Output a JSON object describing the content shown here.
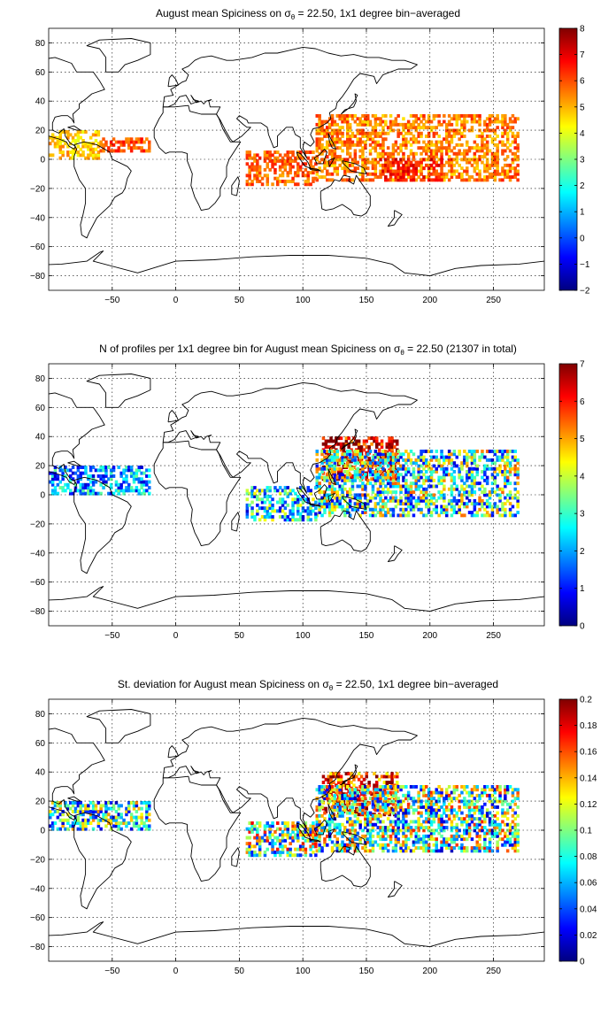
{
  "chart_data": [
    {
      "type": "heatmap",
      "title": "August mean Spiciness on σ",
      "title_sub": "θ",
      "title_tail": " = 22.50, 1x1 degree bin−averaged",
      "x_ticks": [
        "−50",
        "0",
        "50",
        "100",
        "150",
        "200",
        "250"
      ],
      "x_tick_values": [
        -50,
        0,
        50,
        100,
        150,
        200,
        250
      ],
      "xlim": [
        -100,
        290
      ],
      "y_ticks": [
        "80",
        "60",
        "40",
        "20",
        "0",
        "−20",
        "−40",
        "−60",
        "−80"
      ],
      "y_tick_values": [
        80,
        60,
        40,
        20,
        0,
        -20,
        -40,
        -60,
        -80
      ],
      "ylim": [
        -90,
        90
      ],
      "colorbar_ticks": [
        "8",
        "7",
        "6",
        "5",
        "4",
        "3",
        "2",
        "1",
        "0",
        "−1",
        "−2"
      ],
      "colorbar_tick_values": [
        8,
        7,
        6,
        5,
        4,
        3,
        2,
        1,
        0,
        -1,
        -2
      ],
      "clim": [
        -2,
        8
      ],
      "colormap": "jet",
      "grid": true,
      "regions": [
        {
          "lon": [
            110,
            270
          ],
          "lat": [
            -15,
            30
          ],
          "value": 5.5,
          "spread": 1.0
        },
        {
          "lon": [
            160,
            210
          ],
          "lat": [
            -15,
            0
          ],
          "value": 6.5,
          "spread": 0.8
        },
        {
          "lon": [
            55,
            110
          ],
          "lat": [
            -18,
            5
          ],
          "value": 5.8,
          "spread": 0.8
        },
        {
          "lon": [
            -100,
            -60
          ],
          "lat": [
            0,
            20
          ],
          "value": 4.8,
          "spread": 0.8
        },
        {
          "lon": [
            -60,
            -20
          ],
          "lat": [
            5,
            15
          ],
          "value": 6.0,
          "spread": 0.8
        }
      ]
    },
    {
      "type": "heatmap",
      "title": "N of profiles per 1x1 degree bin for August mean Spiciness on σ",
      "title_sub": "θ",
      "title_tail": " = 22.50 (21307 in total)",
      "x_ticks": [
        "−50",
        "0",
        "50",
        "100",
        "150",
        "200",
        "250"
      ],
      "x_tick_values": [
        -50,
        0,
        50,
        100,
        150,
        200,
        250
      ],
      "xlim": [
        -100,
        290
      ],
      "y_ticks": [
        "80",
        "60",
        "40",
        "20",
        "0",
        "−20",
        "−40",
        "−60",
        "−80"
      ],
      "y_tick_values": [
        80,
        60,
        40,
        20,
        0,
        -20,
        -40,
        -60,
        -80
      ],
      "ylim": [
        -90,
        90
      ],
      "colorbar_ticks": [
        "7",
        "6",
        "5",
        "4",
        "3",
        "2",
        "1",
        "0"
      ],
      "colorbar_tick_values": [
        7,
        6,
        5,
        4,
        3,
        2,
        1,
        0
      ],
      "clim": [
        0,
        7
      ],
      "colormap": "jet",
      "grid": true,
      "regions": [
        {
          "lon": [
            115,
            175
          ],
          "lat": [
            10,
            40
          ],
          "value": 6.5,
          "spread": 1.5
        },
        {
          "lon": [
            110,
            270
          ],
          "lat": [
            -15,
            30
          ],
          "value": 3.0,
          "spread": 2.5
        },
        {
          "lon": [
            55,
            110
          ],
          "lat": [
            -18,
            5
          ],
          "value": 2.5,
          "spread": 2.0
        },
        {
          "lon": [
            -100,
            -20
          ],
          "lat": [
            0,
            20
          ],
          "value": 2.0,
          "spread": 1.5
        }
      ]
    },
    {
      "type": "heatmap",
      "title": "St. deviation for August mean Spiciness on σ",
      "title_sub": "θ",
      "title_tail": " = 22.50, 1x1 degree bin−averaged",
      "x_ticks": [
        "−50",
        "0",
        "50",
        "100",
        "150",
        "200",
        "250"
      ],
      "x_tick_values": [
        -50,
        0,
        50,
        100,
        150,
        200,
        250
      ],
      "xlim": [
        -100,
        290
      ],
      "y_ticks": [
        "80",
        "60",
        "40",
        "20",
        "0",
        "−20",
        "−40",
        "−60",
        "−80"
      ],
      "y_tick_values": [
        80,
        60,
        40,
        20,
        0,
        -20,
        -40,
        -60,
        -80
      ],
      "ylim": [
        -90,
        90
      ],
      "colorbar_ticks": [
        "0.2",
        "0.18",
        "0.16",
        "0.14",
        "0.12",
        "0.1",
        "0.08",
        "0.06",
        "0.04",
        "0.02",
        "0"
      ],
      "colorbar_tick_values": [
        0.2,
        0.18,
        0.16,
        0.14,
        0.12,
        0.1,
        0.08,
        0.06,
        0.04,
        0.02,
        0
      ],
      "clim": [
        0,
        0.2
      ],
      "colormap": "jet",
      "grid": true,
      "regions": [
        {
          "lon": [
            115,
            175
          ],
          "lat": [
            10,
            40
          ],
          "value": 0.17,
          "spread": 0.05
        },
        {
          "lon": [
            110,
            270
          ],
          "lat": [
            -15,
            30
          ],
          "value": 0.09,
          "spread": 0.08
        },
        {
          "lon": [
            55,
            110
          ],
          "lat": [
            -18,
            5
          ],
          "value": 0.1,
          "spread": 0.08
        },
        {
          "lon": [
            -100,
            -20
          ],
          "lat": [
            0,
            20
          ],
          "value": 0.08,
          "spread": 0.07
        }
      ]
    }
  ]
}
